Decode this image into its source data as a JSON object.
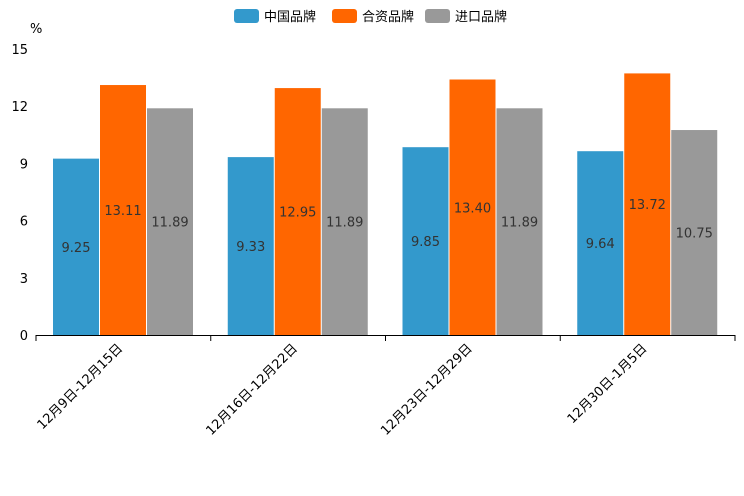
{
  "chart_data": {
    "type": "bar",
    "unit_label": "%",
    "categories": [
      "12月9日-12月15日",
      "12月16日-12月22日",
      "12月23日-12月29日",
      "12月30日-1月5日"
    ],
    "series": [
      {
        "name": "中国品牌",
        "color": "#3399cc",
        "values": [
          9.25,
          9.33,
          9.85,
          9.64
        ],
        "labels": [
          "9.25",
          "9.33",
          "9.85",
          "9.64"
        ]
      },
      {
        "name": "合资品牌",
        "color": "#ff6600",
        "values": [
          13.11,
          12.95,
          13.4,
          13.72
        ],
        "labels": [
          "13.11",
          "12.95",
          "13.40",
          "13.72"
        ]
      },
      {
        "name": "进口品牌",
        "color": "#999999",
        "values": [
          11.89,
          11.89,
          11.89,
          10.75
        ],
        "labels": [
          "11.89",
          "11.89",
          "11.89",
          "10.75"
        ]
      }
    ],
    "ylim": [
      0,
      15
    ],
    "yticks": [
      0,
      3,
      6,
      9,
      12,
      15
    ],
    "ytick_labels": [
      "0",
      "3",
      "6",
      "9",
      "12",
      "15"
    ],
    "legend_position": "top-center",
    "grid": false
  }
}
